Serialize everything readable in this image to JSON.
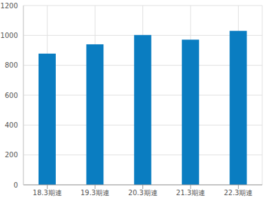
{
  "chart_data": {
    "type": "bar",
    "categories": [
      "18.3期連",
      "19.3期連",
      "20.3期連",
      "21.3期連",
      "22.3期連"
    ],
    "values": [
      878,
      940,
      1003,
      972,
      1030
    ],
    "color": "#0a7dc1",
    "ylim": [
      0,
      1200
    ],
    "yticks": [
      0,
      200,
      400,
      600,
      800,
      1000,
      1200
    ],
    "grid": true
  }
}
